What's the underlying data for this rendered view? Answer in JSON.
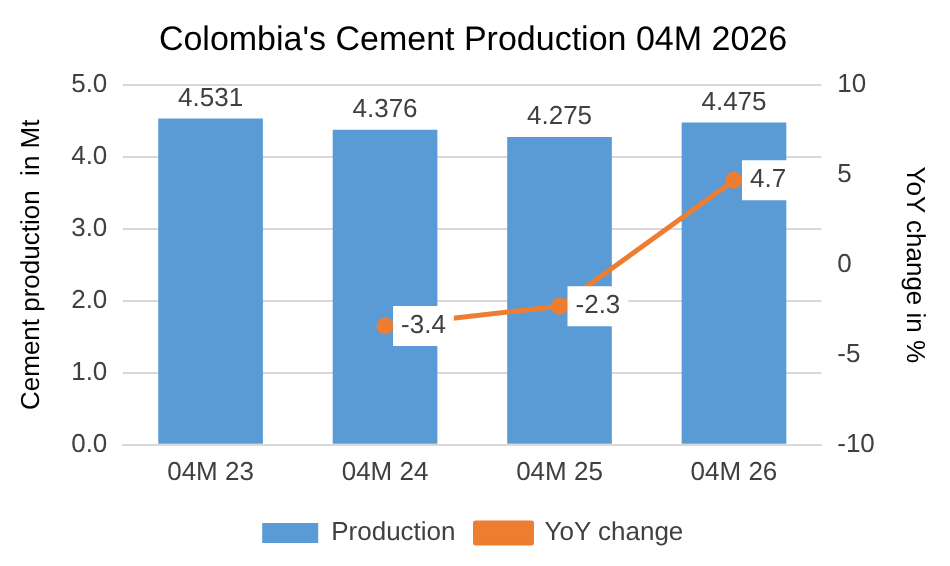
{
  "chart_data": {
    "type": "bar",
    "title": "Colombia's Cement Production 04M 2026",
    "ylabel": "Cement production  in Mt",
    "y2label": "YoY change in %",
    "categories": [
      "04M 23",
      "04M 24",
      "04M 25",
      "04M 26"
    ],
    "series": [
      {
        "name": "Production",
        "color": "#5b9bd5",
        "values": [
          4.531,
          4.376,
          4.275,
          4.475
        ]
      },
      {
        "name": "YoY change",
        "type": "line",
        "axis": "y2",
        "color": "#ed7d31",
        "values": [
          null,
          -3.4,
          -2.3,
          4.7
        ]
      }
    ],
    "ylim": [
      0,
      5
    ],
    "yticks": [
      {
        "value": 0,
        "label": "0.0"
      },
      {
        "value": 1,
        "label": "1.0"
      },
      {
        "value": 2,
        "label": "2.0"
      },
      {
        "value": 3,
        "label": "3.0"
      },
      {
        "value": 4,
        "label": "4.0"
      },
      {
        "value": 5,
        "label": "5.0"
      }
    ],
    "y2lim": [
      -10,
      10
    ],
    "y2ticks": [
      -10,
      -5,
      0,
      5,
      10
    ],
    "grid": "y",
    "legend": "bottom",
    "data_labels": true,
    "marker": "circle",
    "line_style": "solid"
  }
}
